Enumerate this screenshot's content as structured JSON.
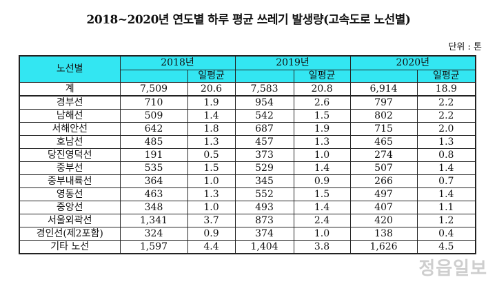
{
  "title": "2018~2020년 연도별 하루 평균 쓰레기 발생량(고속도로 노선별)",
  "unit": "단위 : 톤",
  "header": {
    "route": "노선별",
    "years": [
      "2018년",
      "2019년",
      "2020년"
    ],
    "daily": "일평균"
  },
  "rows": [
    {
      "route": "계",
      "y2018": "7,509",
      "d2018": "20.6",
      "y2019": "7,583",
      "d2019": "20.8",
      "y2020": "6,914",
      "d2020": "18.9"
    },
    {
      "route": "경부선",
      "y2018": "710",
      "d2018": "1.9",
      "y2019": "954",
      "d2019": "2.6",
      "y2020": "797",
      "d2020": "2.2"
    },
    {
      "route": "남해선",
      "y2018": "509",
      "d2018": "1.4",
      "y2019": "542",
      "d2019": "1.5",
      "y2020": "802",
      "d2020": "2.2"
    },
    {
      "route": "서해안선",
      "y2018": "642",
      "d2018": "1.8",
      "y2019": "687",
      "d2019": "1.9",
      "y2020": "715",
      "d2020": "2.0"
    },
    {
      "route": "호남선",
      "y2018": "485",
      "d2018": "1.3",
      "y2019": "457",
      "d2019": "1.3",
      "y2020": "465",
      "d2020": "1.3"
    },
    {
      "route": "당진영덕선",
      "y2018": "191",
      "d2018": "0.5",
      "y2019": "373",
      "d2019": "1.0",
      "y2020": "274",
      "d2020": "0.8"
    },
    {
      "route": "중부선",
      "y2018": "535",
      "d2018": "1.5",
      "y2019": "529",
      "d2019": "1.4",
      "y2020": "507",
      "d2020": "1.4"
    },
    {
      "route": "중부내륙선",
      "y2018": "364",
      "d2018": "1.0",
      "y2019": "345",
      "d2019": "0.9",
      "y2020": "266",
      "d2020": "0.7"
    },
    {
      "route": "영동선",
      "y2018": "463",
      "d2018": "1.3",
      "y2019": "552",
      "d2019": "1.5",
      "y2020": "497",
      "d2020": "1.4"
    },
    {
      "route": "중앙선",
      "y2018": "348",
      "d2018": "1.0",
      "y2019": "493",
      "d2019": "1.4",
      "y2020": "407",
      "d2020": "1.1"
    },
    {
      "route": "서울외곽선",
      "y2018": "1,341",
      "d2018": "3.7",
      "y2019": "873",
      "d2019": "2.4",
      "y2020": "420",
      "d2020": "1.2"
    },
    {
      "route": "경인선(제2포함)",
      "y2018": "324",
      "d2018": "0.9",
      "y2019": "374",
      "d2019": "1.0",
      "y2020": "138",
      "d2020": "0.4"
    },
    {
      "route": "기타 노선",
      "y2018": "1,597",
      "d2018": "4.4",
      "y2019": "1,404",
      "d2019": "3.8",
      "y2020": "1,626",
      "d2020": "4.5"
    }
  ],
  "watermark": "정읍일보",
  "colors": {
    "header_bg": "#33e6f2"
  }
}
